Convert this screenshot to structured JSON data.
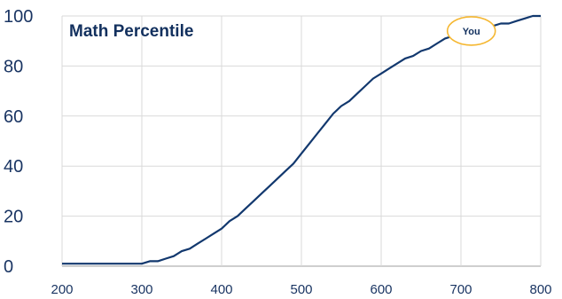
{
  "chart_data": {
    "type": "line",
    "title": "Math Percentile",
    "xlabel": "",
    "ylabel": "",
    "xlim": [
      200,
      800
    ],
    "ylim": [
      0,
      100
    ],
    "xticks": [
      "200",
      "300",
      "400",
      "500",
      "600",
      "700",
      "800"
    ],
    "yticks": [
      "0",
      "20",
      "40",
      "60",
      "80",
      "100"
    ],
    "grid": true,
    "series": [
      {
        "x": [
          200,
          220,
          240,
          260,
          280,
          300,
          310,
          320,
          330,
          340,
          350,
          360,
          370,
          380,
          390,
          400,
          410,
          420,
          430,
          440,
          450,
          460,
          470,
          480,
          490,
          500,
          510,
          520,
          530,
          540,
          550,
          560,
          570,
          580,
          590,
          600,
          610,
          620,
          630,
          640,
          650,
          660,
          670,
          680,
          690,
          700,
          710,
          720,
          730,
          740,
          750,
          760,
          770,
          780,
          790,
          800
        ],
        "y": [
          1,
          1,
          1,
          1,
          1,
          1,
          2,
          2,
          3,
          4,
          6,
          7,
          9,
          11,
          13,
          15,
          18,
          20,
          23,
          26,
          29,
          32,
          35,
          38,
          41,
          45,
          49,
          53,
          57,
          61,
          64,
          66,
          69,
          72,
          75,
          77,
          79,
          81,
          83,
          84,
          86,
          87,
          89,
          91,
          92,
          93,
          94,
          95,
          96,
          96,
          97,
          97,
          98,
          99,
          100,
          100
        ]
      }
    ],
    "annotation": {
      "label": "You",
      "x": 713,
      "y": 94
    },
    "colors": {
      "line": "#12386e",
      "grid": "#d9d9d9",
      "axis": "#bfbfbf",
      "marker_stroke": "#f5b731",
      "text": "#12305e"
    }
  }
}
